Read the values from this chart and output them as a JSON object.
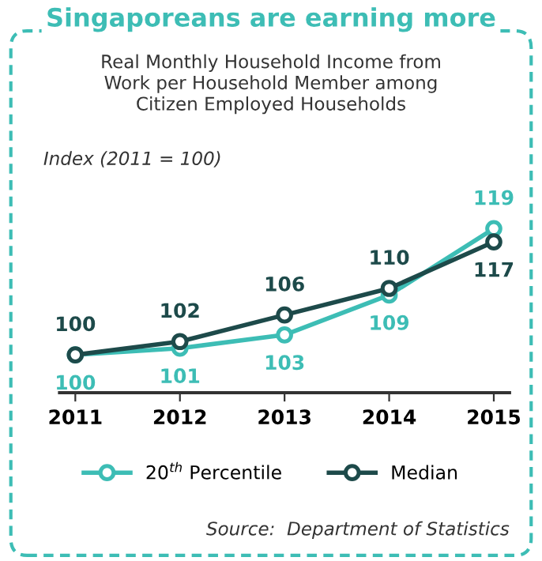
{
  "chart_data": {
    "type": "line",
    "title": "Singaporeans are earning more",
    "subtitle": "Real Monthly Household Income from Work per Household Member among Citizen Employed Households",
    "annotations": [
      "Index (2011 = 100)",
      "Source:  Department of Statistics"
    ],
    "categories": [
      "2011",
      "2012",
      "2013",
      "2014",
      "2015"
    ],
    "series": [
      {
        "name": "20$^{th}$ Percentile",
        "color": "#3dbdb5",
        "values": [
          100,
          101,
          103,
          109,
          119
        ]
      },
      {
        "name": "Median",
        "color": "#1d4a4a",
        "values": [
          100,
          102,
          106,
          110,
          117
        ]
      }
    ],
    "data_labels": true,
    "marker": "circle",
    "line_style": "solid",
    "legend": "bottom",
    "grid": false
  }
}
